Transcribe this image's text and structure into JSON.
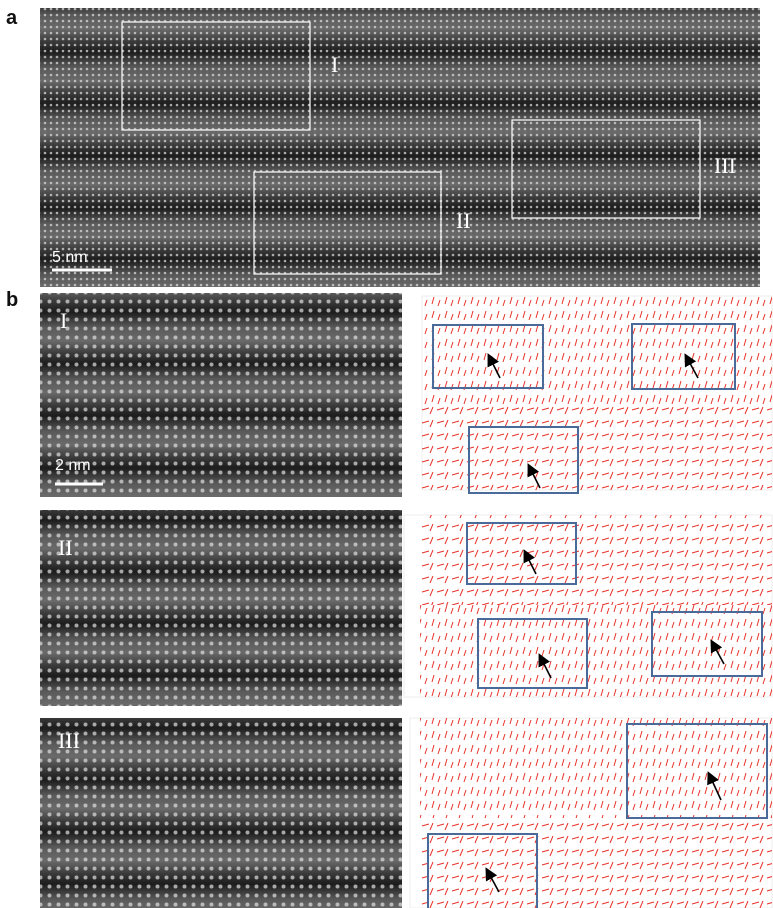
{
  "panel_a": {
    "label": "a",
    "regions": [
      "I",
      "II",
      "III"
    ],
    "scale_bar": "5 nm"
  },
  "panel_b": {
    "label": "b",
    "rows": [
      {
        "label": "I",
        "scale_bar": "2 nm"
      },
      {
        "label": "II"
      },
      {
        "label": "III"
      }
    ]
  }
}
